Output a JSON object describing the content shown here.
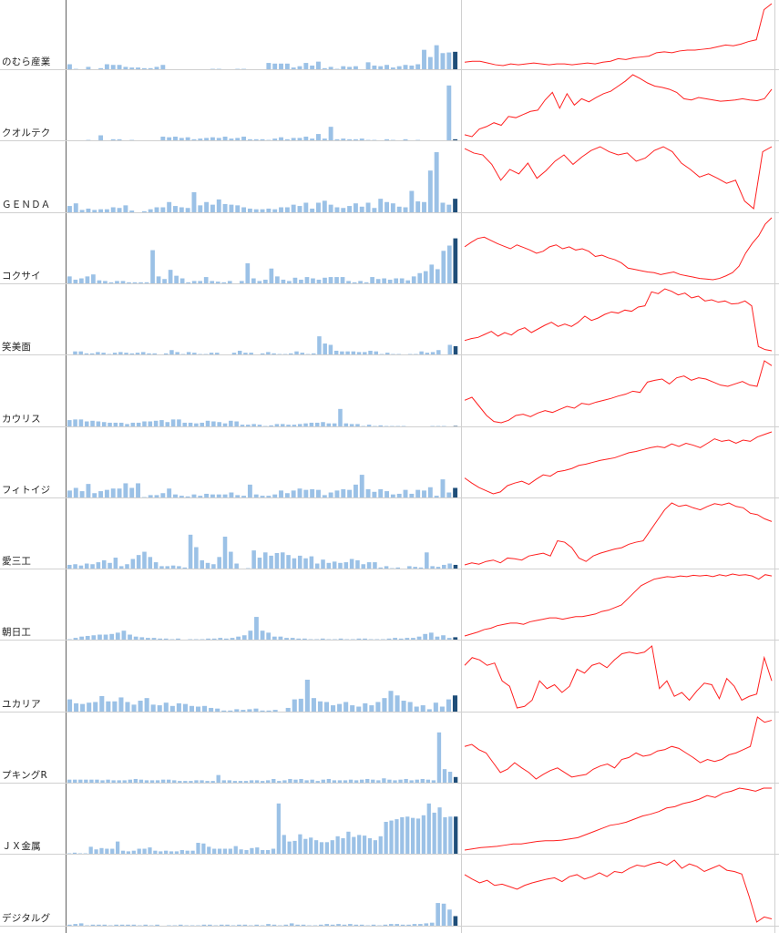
{
  "colors": {
    "bar": "#9bc1e6",
    "highlight": "#1f4e79",
    "line": "#ff2020",
    "grid": "#d0d0d0",
    "axis": "#606060"
  },
  "chart_data": [
    {
      "type": "bar",
      "label": "のむら産業",
      "volume": [
        9,
        2,
        1,
        5,
        1,
        3,
        9,
        8,
        8,
        5,
        4,
        4,
        3,
        3,
        5,
        8,
        1,
        1,
        1,
        1,
        1,
        1,
        1,
        2,
        2,
        1,
        1,
        2,
        2,
        1,
        1,
        1,
        11,
        10,
        10,
        10,
        4,
        6,
        11,
        7,
        13,
        3,
        5,
        2,
        6,
        5,
        6,
        1,
        12,
        7,
        6,
        8,
        4,
        6,
        8,
        7,
        9,
        31,
        20,
        38,
        26,
        27,
        28
      ],
      "price": [
        4,
        5,
        5,
        3,
        1,
        0,
        2,
        1,
        2,
        3,
        2,
        1,
        2,
        2,
        1,
        2,
        3,
        2,
        4,
        5,
        8,
        7,
        9,
        10,
        11,
        15,
        16,
        15,
        17,
        18,
        18,
        19,
        20,
        22,
        24,
        23,
        25,
        28,
        30,
        65,
        72
      ]
    },
    {
      "type": "bar",
      "label": "クオルテク",
      "volume": [
        1,
        1,
        1,
        2,
        1,
        9,
        1,
        3,
        3,
        1,
        2,
        1,
        1,
        1,
        1,
        7,
        6,
        7,
        5,
        6,
        3,
        4,
        5,
        6,
        5,
        7,
        4,
        5,
        7,
        3,
        3,
        3,
        2,
        4,
        6,
        3,
        5,
        5,
        7,
        4,
        11,
        4,
        22,
        3,
        4,
        3,
        3,
        4,
        2,
        2,
        0,
        3,
        2,
        1,
        3,
        1,
        2,
        1,
        1,
        1,
        1,
        85,
        3
      ],
      "price": [
        3,
        0,
        12,
        16,
        22,
        18,
        32,
        30,
        35,
        40,
        42,
        58,
        70,
        45,
        68,
        50,
        60,
        55,
        62,
        68,
        72,
        80,
        88,
        98,
        92,
        85,
        80,
        78,
        75,
        70,
        60,
        58,
        62,
        60,
        58,
        56,
        57,
        58,
        60,
        58,
        57,
        60,
        75
      ]
    },
    {
      "type": "bar",
      "label": "ＧＥＮＤＡ",
      "volume": [
        11,
        15,
        5,
        7,
        5,
        6,
        6,
        9,
        8,
        12,
        4,
        0,
        3,
        6,
        9,
        9,
        17,
        11,
        9,
        8,
        32,
        12,
        17,
        13,
        21,
        14,
        13,
        12,
        9,
        7,
        6,
        6,
        7,
        6,
        9,
        9,
        13,
        11,
        16,
        7,
        16,
        19,
        13,
        9,
        8,
        11,
        15,
        10,
        16,
        8,
        22,
        17,
        15,
        10,
        9,
        34,
        18,
        17,
        65,
        93,
        16,
        13,
        22
      ],
      "price": [
        95,
        88,
        85,
        70,
        45,
        62,
        55,
        72,
        48,
        60,
        75,
        85,
        70,
        82,
        92,
        98,
        90,
        85,
        88,
        75,
        80,
        92,
        98,
        90,
        72,
        62,
        50,
        55,
        48,
        40,
        45,
        12,
        0,
        90,
        98
      ]
    },
    {
      "type": "bar",
      "label": "コクサイ",
      "volume": [
        12,
        7,
        9,
        12,
        15,
        6,
        5,
        3,
        5,
        5,
        3,
        3,
        3,
        3,
        52,
        12,
        8,
        22,
        13,
        9,
        3,
        5,
        5,
        11,
        5,
        4,
        3,
        5,
        1,
        5,
        32,
        9,
        5,
        7,
        24,
        12,
        7,
        5,
        10,
        7,
        11,
        9,
        7,
        10,
        11,
        11,
        11,
        5,
        3,
        5,
        3,
        11,
        8,
        9,
        7,
        9,
        9,
        6,
        12,
        17,
        20,
        30,
        23,
        51,
        59,
        70
      ],
      "price": [
        55,
        62,
        68,
        70,
        65,
        60,
        56,
        52,
        58,
        54,
        50,
        45,
        48,
        55,
        58,
        52,
        55,
        50,
        52,
        48,
        40,
        42,
        38,
        35,
        30,
        22,
        20,
        18,
        16,
        15,
        12,
        14,
        16,
        12,
        10,
        8,
        6,
        5,
        4,
        6,
        10,
        15,
        25,
        45,
        60,
        72,
        90,
        100
      ]
    },
    {
      "type": "bar",
      "label": "笑美面",
      "volume": [
        1,
        6,
        6,
        3,
        3,
        5,
        4,
        2,
        4,
        5,
        4,
        3,
        4,
        5,
        3,
        3,
        1,
        3,
        8,
        5,
        2,
        5,
        4,
        2,
        2,
        4,
        4,
        1,
        1,
        4,
        7,
        4,
        4,
        1,
        3,
        5,
        3,
        2,
        2,
        3,
        6,
        4,
        2,
        3,
        29,
        18,
        16,
        7,
        6,
        6,
        6,
        5,
        5,
        7,
        6,
        2,
        4,
        2,
        2,
        1,
        2,
        2,
        6,
        4,
        5,
        8,
        1,
        16,
        14
      ],
      "price": [
        15,
        18,
        20,
        25,
        30,
        22,
        28,
        24,
        32,
        36,
        28,
        34,
        40,
        45,
        38,
        42,
        38,
        45,
        55,
        48,
        52,
        58,
        62,
        60,
        65,
        63,
        70,
        72,
        95,
        92,
        100,
        96,
        90,
        93,
        85,
        88,
        80,
        82,
        78,
        80,
        75,
        76,
        80,
        72,
        5,
        0,
        -2
      ]
    },
    {
      "type": "bar",
      "label": "カウリス",
      "volume": [
        11,
        12,
        12,
        9,
        10,
        9,
        8,
        7,
        7,
        7,
        5,
        7,
        7,
        9,
        9,
        10,
        11,
        8,
        12,
        12,
        7,
        7,
        6,
        7,
        10,
        9,
        8,
        6,
        10,
        9,
        4,
        4,
        5,
        4,
        2,
        3,
        5,
        5,
        4,
        4,
        5,
        6,
        7,
        7,
        8,
        6,
        6,
        28,
        6,
        5,
        5,
        2,
        4,
        2,
        3,
        2,
        2,
        2,
        2,
        1,
        1,
        1,
        1,
        2,
        2,
        2,
        1,
        2
      ],
      "price": [
        35,
        40,
        25,
        10,
        0,
        -2,
        2,
        10,
        12,
        8,
        14,
        18,
        15,
        20,
        25,
        22,
        30,
        28,
        32,
        35,
        38,
        42,
        45,
        50,
        48,
        65,
        68,
        70,
        62,
        72,
        75,
        68,
        72,
        70,
        65,
        60,
        58,
        62,
        66,
        60,
        58,
        100,
        92
      ]
    },
    {
      "type": "bar",
      "label": "フィトイジ",
      "volume": [
        12,
        16,
        11,
        22,
        8,
        11,
        13,
        15,
        15,
        23,
        16,
        23,
        2,
        5,
        5,
        8,
        15,
        6,
        4,
        3,
        6,
        4,
        7,
        6,
        6,
        6,
        9,
        5,
        4,
        21,
        6,
        4,
        4,
        6,
        12,
        8,
        12,
        15,
        13,
        14,
        13,
        5,
        9,
        12,
        14,
        13,
        21,
        36,
        14,
        10,
        14,
        11,
        6,
        7,
        13,
        7,
        13,
        12,
        17,
        4,
        29,
        9,
        16
      ],
      "price": [
        30,
        22,
        15,
        10,
        5,
        8,
        18,
        22,
        25,
        20,
        28,
        35,
        33,
        40,
        42,
        45,
        50,
        52,
        55,
        58,
        60,
        62,
        66,
        70,
        72,
        75,
        78,
        80,
        78,
        84,
        80,
        85,
        82,
        78,
        85,
        92,
        88,
        90,
        85,
        90,
        88,
        95,
        99,
        103
      ]
    },
    {
      "type": "bar",
      "label": "愛三工",
      "volume": [
        7,
        8,
        6,
        9,
        8,
        11,
        14,
        10,
        18,
        5,
        8,
        16,
        22,
        27,
        19,
        11,
        5,
        5,
        6,
        5,
        3,
        53,
        34,
        14,
        10,
        8,
        19,
        50,
        27,
        9,
        1,
        2,
        29,
        18,
        26,
        21,
        25,
        26,
        22,
        17,
        21,
        17,
        20,
        9,
        15,
        10,
        12,
        10,
        11,
        16,
        14,
        8,
        11,
        11,
        3,
        5,
        2,
        3,
        1,
        5,
        4,
        3,
        26,
        5,
        4,
        7,
        9,
        7
      ],
      "price": [
        5,
        8,
        6,
        10,
        12,
        8,
        15,
        14,
        12,
        18,
        20,
        22,
        18,
        40,
        38,
        30,
        15,
        10,
        18,
        22,
        25,
        28,
        30,
        35,
        38,
        40,
        55,
        70,
        85,
        95,
        90,
        92,
        88,
        85,
        90,
        94,
        92,
        95,
        90,
        88,
        80,
        78,
        72,
        68
      ]
    },
    {
      "type": "bar",
      "label": "朝日工",
      "volume": [
        2,
        4,
        6,
        7,
        8,
        9,
        9,
        10,
        12,
        15,
        9,
        6,
        5,
        4,
        4,
        3,
        3,
        2,
        3,
        1,
        2,
        2,
        2,
        3,
        3,
        4,
        3,
        4,
        6,
        8,
        15,
        36,
        15,
        12,
        6,
        6,
        4,
        4,
        3,
        3,
        2,
        2,
        3,
        2,
        2,
        3,
        2,
        2,
        3,
        3,
        2,
        2,
        2,
        3,
        4,
        3,
        4,
        4,
        6,
        10,
        12,
        6,
        8,
        4,
        5
      ],
      "price": [
        2,
        5,
        8,
        12,
        14,
        18,
        20,
        22,
        22,
        20,
        24,
        26,
        28,
        30,
        30,
        28,
        30,
        32,
        32,
        34,
        36,
        40,
        42,
        46,
        50,
        60,
        70,
        80,
        85,
        90,
        92,
        94,
        93,
        95,
        94,
        96,
        95,
        96,
        94,
        97,
        95,
        98,
        96,
        97,
        95,
        90,
        97,
        95
      ]
    },
    {
      "type": "bar",
      "label": "ユカリア",
      "volume": [
        20,
        14,
        13,
        15,
        16,
        25,
        17,
        17,
        23,
        16,
        12,
        18,
        22,
        12,
        11,
        15,
        10,
        14,
        13,
        10,
        9,
        10,
        7,
        6,
        3,
        3,
        5,
        4,
        5,
        6,
        3,
        3,
        4,
        0,
        7,
        20,
        21,
        50,
        22,
        17,
        16,
        11,
        13,
        16,
        11,
        9,
        14,
        11,
        16,
        22,
        33,
        26,
        18,
        16,
        9,
        11,
        5,
        15,
        9,
        20,
        26
      ],
      "price": [
        55,
        65,
        62,
        55,
        58,
        35,
        28,
        0,
        2,
        10,
        35,
        25,
        30,
        20,
        28,
        50,
        45,
        55,
        58,
        52,
        62,
        70,
        72,
        70,
        72,
        80,
        25,
        35,
        15,
        20,
        10,
        22,
        32,
        30,
        12,
        38,
        28,
        10,
        15,
        18,
        65,
        35
      ]
    },
    {
      "type": "bar",
      "label": "プキングR",
      "volume": [
        6,
        6,
        6,
        6,
        6,
        6,
        5,
        6,
        5,
        5,
        5,
        6,
        7,
        6,
        5,
        5,
        5,
        6,
        6,
        5,
        4,
        4,
        4,
        5,
        5,
        4,
        4,
        13,
        5,
        5,
        4,
        4,
        4,
        5,
        5,
        4,
        5,
        7,
        4,
        5,
        7,
        6,
        7,
        5,
        6,
        4,
        6,
        7,
        5,
        5,
        5,
        6,
        5,
        6,
        7,
        6,
        5,
        8,
        6,
        5,
        6,
        7,
        5,
        6,
        7,
        6,
        5,
        78,
        22,
        18,
        10
      ],
      "price": [
        55,
        58,
        50,
        45,
        30,
        15,
        20,
        30,
        22,
        15,
        5,
        12,
        18,
        22,
        15,
        8,
        10,
        12,
        20,
        25,
        28,
        22,
        35,
        38,
        45,
        40,
        42,
        48,
        50,
        55,
        52,
        45,
        38,
        30,
        35,
        32,
        35,
        42,
        45,
        50,
        55,
        100,
        92,
        95
      ]
    },
    {
      "type": "bar",
      "label": "ＪＸ金属",
      "volume": [
        2,
        3,
        2,
        2,
        12,
        8,
        10,
        9,
        9,
        20,
        6,
        5,
        6,
        9,
        9,
        11,
        6,
        5,
        6,
        5,
        5,
        7,
        6,
        6,
        18,
        17,
        12,
        9,
        9,
        9,
        9,
        13,
        8,
        7,
        10,
        11,
        7,
        7,
        9,
        78,
        30,
        20,
        21,
        31,
        24,
        26,
        22,
        19,
        19,
        22,
        28,
        25,
        35,
        27,
        30,
        29,
        25,
        22,
        28,
        50,
        52,
        54,
        57,
        58,
        56,
        55,
        60,
        78,
        64,
        72,
        57,
        58,
        58
      ],
      "price": [
        0,
        2,
        4,
        5,
        6,
        8,
        10,
        10,
        12,
        14,
        15,
        15,
        16,
        18,
        20,
        25,
        30,
        35,
        40,
        42,
        45,
        50,
        55,
        58,
        62,
        68,
        70,
        75,
        78,
        82,
        88,
        85,
        92,
        95,
        100,
        98,
        95,
        100,
        100
      ]
    },
    {
      "type": "bar",
      "label": "デジタルグ",
      "volume": [
        3,
        4,
        5,
        2,
        3,
        3,
        3,
        2,
        3,
        3,
        3,
        3,
        2,
        3,
        2,
        3,
        1,
        2,
        2,
        3,
        2,
        2,
        2,
        3,
        3,
        2,
        3,
        3,
        2,
        3,
        3,
        2,
        3,
        2,
        4,
        3,
        2,
        3,
        5,
        3,
        3,
        2,
        2,
        3,
        4,
        3,
        4,
        3,
        4,
        3,
        3,
        2,
        3,
        2,
        3,
        4,
        4,
        3,
        3,
        4,
        4,
        5,
        6,
        36,
        35,
        26,
        16
      ],
      "price": [
        75,
        68,
        62,
        66,
        58,
        60,
        56,
        52,
        58,
        62,
        65,
        68,
        70,
        64,
        72,
        75,
        68,
        72,
        78,
        72,
        80,
        78,
        85,
        90,
        88,
        92,
        95,
        90,
        98,
        85,
        92,
        88,
        80,
        85,
        90,
        82,
        80,
        76,
        40,
        0,
        8,
        5
      ]
    }
  ]
}
